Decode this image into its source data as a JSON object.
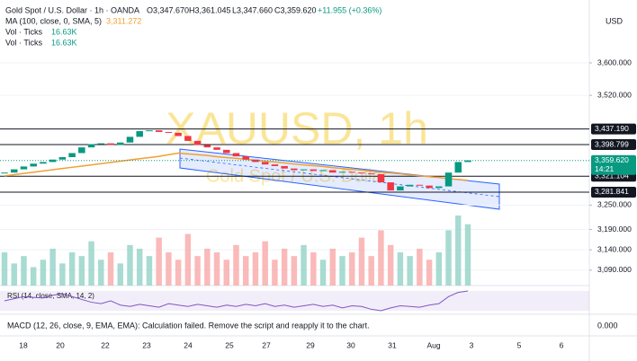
{
  "header": {
    "symbol": "Gold Spot / U.S. Dollar · 1h · OANDA",
    "open": "O3,347.670",
    "high": "H3,361.045",
    "low": "L3,347.660",
    "close": "C3,359.620",
    "change": "+11.955 (+0.36%)",
    "ma_label": "MA (100, close, 0, SMA, 5)",
    "ma_value": "3,311.272",
    "vol_label_1": "Vol · Ticks",
    "vol_value_1": "16.63K",
    "vol_label_2": "Vol · Ticks",
    "vol_value_2": "16.63K"
  },
  "currency": "USD",
  "watermark": {
    "title": "XAUUSD, 1h",
    "subtitle": "Gold Spot / U.S. Dollar"
  },
  "rsi_label": "RSI (14, close, SMA, 14, 2)",
  "macd": {
    "label": "MACD (12, 26, close, 9, EMA, EMA): Calculation failed. Remove the script and reapply it to the chart.",
    "value": "0.000"
  },
  "chart_data": {
    "type": "candlestick",
    "x_labels": [
      "18",
      "20",
      "22",
      "23",
      "24",
      "25",
      "27",
      "29",
      "30",
      "31",
      "Aug",
      "3",
      "5",
      "6"
    ],
    "ylim": [
      3052,
      3737
    ],
    "yticks": [
      {
        "value": 3600,
        "label": "3,600.000"
      },
      {
        "value": 3520,
        "label": "3,520.000"
      },
      {
        "value": 3250,
        "label": "3,250.000"
      },
      {
        "value": 3190,
        "label": "3,190.000"
      },
      {
        "value": 3140,
        "label": "3,140.000"
      },
      {
        "value": 3090,
        "label": "3,090.000"
      }
    ],
    "levels": [
      {
        "value": 3437.19,
        "label": "3,437.190"
      },
      {
        "value": 3398.799,
        "label": "3,398.799"
      },
      {
        "value": 3321.104,
        "label": "3,321.104"
      },
      {
        "value": 3281.841,
        "label": "3,281.841"
      }
    ],
    "last_price": {
      "value": 3359.62,
      "label": "3,359.620",
      "countdown": "14:21"
    },
    "series": [
      {
        "name": "Price",
        "color": "#089981",
        "down_color": "#f23645",
        "values": [
          3330,
          3338,
          3345,
          3352,
          3356,
          3362,
          3368,
          3378,
          3392,
          3400,
          3402,
          3398,
          3404,
          3418,
          3432,
          3434,
          3430,
          3428,
          3420,
          3408,
          3398,
          3392,
          3386,
          3378,
          3370,
          3362,
          3356,
          3350,
          3346,
          3340,
          3336,
          3338,
          3334,
          3336,
          3330,
          3332,
          3330,
          3328,
          3326,
          3306,
          3286,
          3296,
          3300,
          3298,
          3292,
          3296,
          3330,
          3356,
          3360
        ]
      },
      {
        "name": "MA",
        "color": "#f0a030",
        "values": [
          3322,
          3325,
          3328,
          3331,
          3334,
          3337,
          3340,
          3343,
          3346,
          3349,
          3352,
          3355,
          3358,
          3361,
          3364,
          3367,
          3370,
          3374,
          3378,
          3376,
          3374,
          3372,
          3369,
          3367,
          3365,
          3363,
          3360,
          3358,
          3356,
          3354,
          3351,
          3349,
          3347,
          3345,
          3342,
          3340,
          3338,
          3336,
          3333,
          3331,
          3329,
          3327,
          3324,
          3322,
          3320,
          3318,
          3315,
          3313,
          3311
        ]
      },
      {
        "name": "Volume",
        "color": "#f7a9a7",
        "values": [
          9,
          6,
          8,
          5,
          7,
          10,
          6,
          9,
          8,
          12,
          7,
          9,
          6,
          11,
          10,
          8,
          13,
          9,
          7,
          14,
          8,
          10,
          9,
          7,
          11,
          8,
          9,
          12,
          7,
          10,
          8,
          11,
          9,
          7,
          10,
          8,
          9,
          13,
          8,
          15,
          11,
          9,
          8,
          10,
          7,
          9,
          15,
          19,
          16.63
        ]
      },
      {
        "name": "RSI",
        "color": "#7e57c2",
        "values": [
          52,
          55,
          58,
          57,
          56,
          60,
          62,
          58,
          54,
          50,
          48,
          52,
          46,
          44,
          47,
          45,
          43,
          48,
          46,
          44,
          47,
          45,
          43,
          46,
          44,
          47,
          45,
          48,
          44,
          46,
          43,
          45,
          47,
          44,
          46,
          42,
          45,
          44,
          40,
          38,
          42,
          45,
          44,
          43,
          46,
          48,
          58,
          64,
          66
        ]
      }
    ]
  }
}
